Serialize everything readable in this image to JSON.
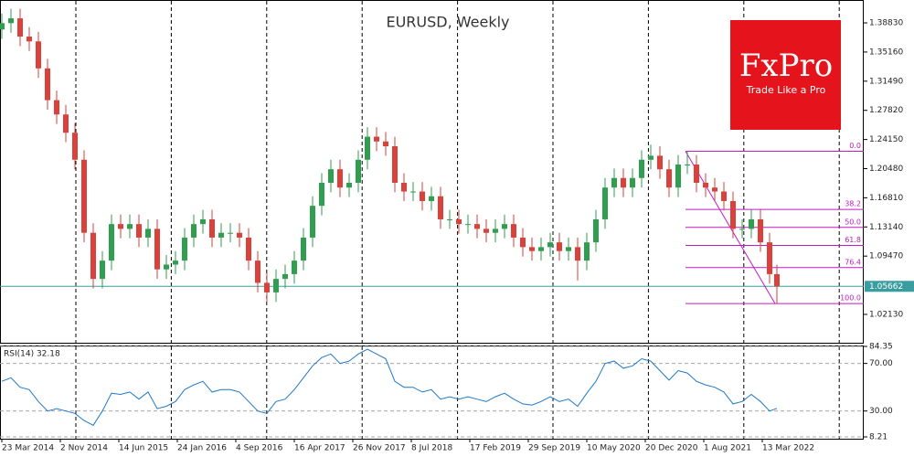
{
  "chart_data": [
    {
      "type": "candlestick",
      "title": "EURUSD, Weekly",
      "x": [
        0,
        5,
        10,
        15,
        20,
        25,
        30,
        35,
        40,
        45,
        50,
        55,
        60,
        65,
        70,
        75,
        80,
        85,
        90,
        95,
        100,
        105,
        110,
        115,
        120,
        125,
        130,
        135,
        140,
        145,
        150,
        155,
        160,
        165,
        170,
        175,
        180,
        185,
        190,
        195,
        200,
        205,
        210,
        215,
        220,
        225,
        230,
        235,
        240,
        245,
        250,
        255,
        260,
        265,
        270,
        275,
        280,
        285,
        290,
        295,
        300,
        305,
        310,
        315,
        320,
        325,
        330,
        335,
        340,
        345,
        350,
        355,
        360,
        365,
        370,
        375,
        380,
        385,
        390,
        395,
        400,
        405,
        410,
        415,
        420,
        424
      ],
      "open": [
        1.38,
        1.388,
        1.394,
        1.371,
        1.365,
        1.331,
        1.291,
        1.273,
        1.25,
        1.216,
        1.124,
        1.066,
        1.089,
        1.135,
        1.129,
        1.135,
        1.118,
        1.129,
        1.078,
        1.084,
        1.089,
        1.118,
        1.135,
        1.141,
        1.118,
        1.124,
        1.124,
        1.118,
        1.089,
        1.061,
        1.049,
        1.066,
        1.072,
        1.089,
        1.118,
        1.158,
        1.187,
        1.204,
        1.181,
        1.187,
        1.216,
        1.245,
        1.239,
        1.233,
        1.187,
        1.176,
        1.176,
        1.164,
        1.17,
        1.141,
        1.141,
        1.135,
        1.135,
        1.129,
        1.124,
        1.129,
        1.135,
        1.118,
        1.106,
        1.101,
        1.106,
        1.112,
        1.101,
        1.106,
        1.089,
        1.112,
        1.141,
        1.181,
        1.193,
        1.181,
        1.193,
        1.216,
        1.221,
        1.204,
        1.181,
        1.21,
        1.21,
        1.187,
        1.181,
        1.176,
        1.164,
        1.129,
        1.129,
        1.141,
        1.112,
        1.072
      ],
      "high": [
        1.4,
        1.406,
        1.406,
        1.383,
        1.377,
        1.343,
        1.303,
        1.285,
        1.262,
        1.228,
        1.136,
        1.101,
        1.147,
        1.147,
        1.147,
        1.147,
        1.141,
        1.141,
        1.096,
        1.101,
        1.13,
        1.147,
        1.153,
        1.153,
        1.136,
        1.136,
        1.136,
        1.13,
        1.101,
        1.073,
        1.078,
        1.084,
        1.101,
        1.13,
        1.17,
        1.199,
        1.216,
        1.216,
        1.199,
        1.228,
        1.257,
        1.257,
        1.251,
        1.245,
        1.199,
        1.188,
        1.188,
        1.182,
        1.182,
        1.153,
        1.153,
        1.147,
        1.147,
        1.141,
        1.141,
        1.147,
        1.147,
        1.13,
        1.118,
        1.118,
        1.124,
        1.124,
        1.118,
        1.118,
        1.124,
        1.153,
        1.193,
        1.205,
        1.205,
        1.205,
        1.228,
        1.235,
        1.233,
        1.216,
        1.222,
        1.227,
        1.222,
        1.199,
        1.193,
        1.188,
        1.176,
        1.141,
        1.153,
        1.153,
        1.124,
        1.084
      ],
      "low": [
        1.368,
        1.376,
        1.359,
        1.353,
        1.319,
        1.279,
        1.261,
        1.238,
        1.204,
        1.112,
        1.054,
        1.054,
        1.077,
        1.117,
        1.117,
        1.106,
        1.106,
        1.066,
        1.066,
        1.072,
        1.077,
        1.106,
        1.123,
        1.106,
        1.106,
        1.112,
        1.106,
        1.077,
        1.049,
        1.037,
        1.037,
        1.054,
        1.06,
        1.077,
        1.106,
        1.146,
        1.175,
        1.169,
        1.169,
        1.175,
        1.204,
        1.227,
        1.221,
        1.175,
        1.164,
        1.164,
        1.152,
        1.152,
        1.129,
        1.129,
        1.123,
        1.123,
        1.117,
        1.112,
        1.112,
        1.117,
        1.106,
        1.094,
        1.089,
        1.089,
        1.094,
        1.089,
        1.089,
        1.064,
        1.077,
        1.1,
        1.129,
        1.169,
        1.169,
        1.169,
        1.181,
        1.204,
        1.192,
        1.169,
        1.169,
        1.198,
        1.175,
        1.169,
        1.164,
        1.152,
        1.117,
        1.117,
        1.117,
        1.1,
        1.06,
        1.035
      ],
      "close": [
        1.388,
        1.394,
        1.371,
        1.365,
        1.331,
        1.291,
        1.273,
        1.25,
        1.216,
        1.124,
        1.066,
        1.089,
        1.135,
        1.129,
        1.135,
        1.118,
        1.129,
        1.078,
        1.084,
        1.089,
        1.118,
        1.135,
        1.141,
        1.118,
        1.124,
        1.124,
        1.118,
        1.089,
        1.061,
        1.049,
        1.066,
        1.072,
        1.089,
        1.118,
        1.158,
        1.187,
        1.204,
        1.181,
        1.187,
        1.216,
        1.245,
        1.239,
        1.233,
        1.187,
        1.176,
        1.176,
        1.164,
        1.17,
        1.141,
        1.141,
        1.135,
        1.135,
        1.129,
        1.124,
        1.129,
        1.135,
        1.118,
        1.106,
        1.101,
        1.106,
        1.112,
        1.101,
        1.106,
        1.089,
        1.112,
        1.141,
        1.181,
        1.193,
        1.181,
        1.193,
        1.216,
        1.221,
        1.204,
        1.181,
        1.21,
        1.21,
        1.187,
        1.181,
        1.176,
        1.164,
        1.129,
        1.129,
        1.141,
        1.112,
        1.072,
        1.0566
      ],
      "up_color": "#2f9e4f",
      "down_color": "#d9413a",
      "xlim": [
        -1,
        471.5
      ],
      "ylim": [
        0.9856,
        1.4171
      ],
      "yticks": [
        {
          "value": 1.3883,
          "label": "1.38830"
        },
        {
          "value": 1.3516,
          "label": "1.35160"
        },
        {
          "value": 1.3149,
          "label": "1.31490"
        },
        {
          "value": 1.2782,
          "label": "1.27820"
        },
        {
          "value": 1.2415,
          "label": "1.24150"
        },
        {
          "value": 1.2048,
          "label": "1.20480"
        },
        {
          "value": 1.1681,
          "label": "1.16810"
        },
        {
          "value": 1.1314,
          "label": "1.13140"
        },
        {
          "value": 1.0947,
          "label": "1.09470"
        },
        {
          "value": 1.0213,
          "label": "1.02130"
        }
      ],
      "last_price": {
        "value": 1.05662,
        "label": "1.05662"
      },
      "last_price_color": "#3a9ea0",
      "fibonacci": {
        "color": "#c21ac2",
        "x": [
          374,
          423
        ],
        "from": 1.2266,
        "to": 1.035,
        "levels": [
          {
            "value": 0,
            "label": "0.0"
          },
          {
            "value": 38.2,
            "label": "38.2"
          },
          {
            "value": 50,
            "label": "50.0"
          },
          {
            "value": 61.8,
            "label": "61.8"
          },
          {
            "value": 76.4,
            "label": "76.4"
          },
          {
            "value": 100,
            "label": "100.0"
          }
        ]
      }
    },
    {
      "type": "line",
      "title": "RSI(14) 32.18",
      "x": [
        0,
        5,
        10,
        15,
        20,
        25,
        30,
        35,
        40,
        45,
        50,
        55,
        60,
        65,
        70,
        75,
        80,
        85,
        90,
        95,
        100,
        105,
        110,
        115,
        120,
        125,
        130,
        135,
        140,
        145,
        150,
        155,
        160,
        165,
        170,
        175,
        180,
        185,
        190,
        195,
        200,
        205,
        210,
        215,
        220,
        225,
        230,
        235,
        240,
        245,
        250,
        255,
        260,
        265,
        270,
        275,
        280,
        285,
        290,
        295,
        300,
        305,
        310,
        315,
        320,
        325,
        330,
        335,
        340,
        345,
        350,
        355,
        360,
        365,
        370,
        375,
        380,
        385,
        390,
        395,
        400,
        405,
        410,
        415,
        420,
        424
      ],
      "values": [
        55,
        58,
        50,
        48,
        38,
        30,
        32,
        30,
        28,
        22,
        18,
        30,
        45,
        44,
        46,
        40,
        46,
        32,
        34,
        38,
        48,
        52,
        55,
        46,
        48,
        48,
        46,
        38,
        30,
        28,
        38,
        40,
        48,
        58,
        68,
        75,
        78,
        70,
        72,
        78,
        82,
        78,
        74,
        55,
        50,
        50,
        46,
        48,
        40,
        42,
        40,
        42,
        40,
        38,
        42,
        45,
        40,
        36,
        35,
        38,
        42,
        38,
        40,
        34,
        45,
        55,
        70,
        72,
        66,
        68,
        74,
        72,
        64,
        56,
        64,
        62,
        55,
        52,
        50,
        46,
        36,
        38,
        44,
        38,
        30,
        32.18
      ],
      "color": "#1f78c8",
      "xlim": [
        -1,
        471.5
      ],
      "ylim": [
        8.21,
        84.35
      ],
      "yticks": [
        {
          "value": 84.35,
          "label": "84.35"
        },
        {
          "value": 70,
          "label": "70.00"
        },
        {
          "value": 30,
          "label": "30.00"
        },
        {
          "value": 8.21,
          "label": "8.21"
        }
      ],
      "xticks": [
        {
          "value": 0,
          "label": "23 Mar 2014"
        },
        {
          "value": 32,
          "label": "2 Nov 2014"
        },
        {
          "value": 64,
          "label": "14 Jun 2015"
        },
        {
          "value": 96,
          "label": "24 Jan 2016"
        },
        {
          "value": 128,
          "label": "4 Sep 2016"
        },
        {
          "value": 160,
          "label": "16 Apr 2017"
        },
        {
          "value": 192,
          "label": "26 Nov 2017"
        },
        {
          "value": 224,
          "label": "8 Jul 2018"
        },
        {
          "value": 256,
          "label": "17 Feb 2019"
        },
        {
          "value": 288,
          "label": "29 Sep 2019"
        },
        {
          "value": 320,
          "label": "10 May 2020"
        },
        {
          "value": 352,
          "label": "20 Dec 2020"
        },
        {
          "value": 384,
          "label": "1 Aug 2021"
        },
        {
          "value": 416,
          "label": "13 Mar 2022"
        }
      ]
    }
  ],
  "logo": {
    "name": "FxPro",
    "tagline": "Trade Like a Pro"
  }
}
